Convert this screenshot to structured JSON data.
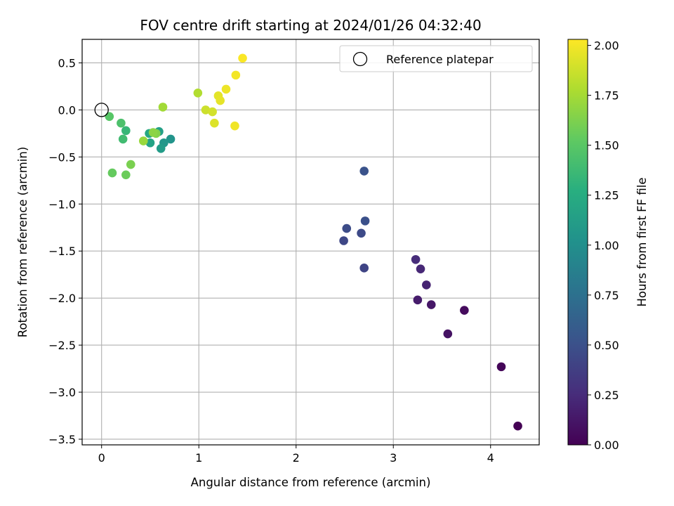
{
  "chart_data": {
    "type": "scatter",
    "title": "FOV centre drift starting at 2024/01/26 04:32:40",
    "xlabel": "Angular distance from reference (arcmin)",
    "ylabel": "Rotation from reference (arcmin)",
    "xlim": [
      -0.2,
      4.5
    ],
    "ylim": [
      -3.56,
      0.75
    ],
    "xticks": [
      0,
      1,
      2,
      3,
      4
    ],
    "xtick_labels": [
      "0",
      "1",
      "2",
      "3",
      "4"
    ],
    "yticks": [
      0.5,
      0.0,
      -0.5,
      -1.0,
      -1.5,
      -2.0,
      -2.5,
      -3.0,
      -3.5
    ],
    "ytick_labels": [
      "0.5",
      "0.0",
      "−0.5",
      "−1.0",
      "−1.5",
      "−2.0",
      "−2.5",
      "−3.0",
      "−3.5"
    ],
    "grid": true,
    "legend": {
      "position": "top-right",
      "entries": [
        "Reference platepar"
      ]
    },
    "reference_point": {
      "x": 0,
      "y": 0
    },
    "colorbar": {
      "label": "Hours from first FF file",
      "colormap": "viridis",
      "range": [
        0.0,
        2.03
      ],
      "ticks": [
        0.0,
        0.25,
        0.5,
        0.75,
        1.0,
        1.25,
        1.5,
        1.75,
        2.0
      ],
      "tick_labels": [
        "0.00",
        "0.25",
        "0.50",
        "0.75",
        "1.00",
        "1.25",
        "1.50",
        "1.75",
        "2.00"
      ]
    },
    "points": [
      {
        "x": 4.28,
        "y": -3.36,
        "c": 0.0
      },
      {
        "x": 4.11,
        "y": -2.73,
        "c": 0.03
      },
      {
        "x": 3.73,
        "y": -2.13,
        "c": 0.06
      },
      {
        "x": 3.56,
        "y": -2.38,
        "c": 0.1
      },
      {
        "x": 3.39,
        "y": -2.07,
        "c": 0.13
      },
      {
        "x": 3.25,
        "y": -2.02,
        "c": 0.16
      },
      {
        "x": 3.34,
        "y": -1.86,
        "c": 0.2
      },
      {
        "x": 3.28,
        "y": -1.69,
        "c": 0.23
      },
      {
        "x": 3.23,
        "y": -1.59,
        "c": 0.26
      },
      {
        "x": 2.7,
        "y": -1.68,
        "c": 0.42
      },
      {
        "x": 2.49,
        "y": -1.39,
        "c": 0.44
      },
      {
        "x": 2.67,
        "y": -1.31,
        "c": 0.46
      },
      {
        "x": 2.52,
        "y": -1.26,
        "c": 0.47
      },
      {
        "x": 2.71,
        "y": -1.18,
        "c": 0.5
      },
      {
        "x": 2.7,
        "y": -0.65,
        "c": 0.52
      },
      {
        "x": 0.71,
        "y": -0.31,
        "c": 1.05
      },
      {
        "x": 0.64,
        "y": -0.35,
        "c": 1.08
      },
      {
        "x": 0.61,
        "y": -0.41,
        "c": 1.12
      },
      {
        "x": 0.59,
        "y": -0.23,
        "c": 1.15
      },
      {
        "x": 0.5,
        "y": -0.35,
        "c": 1.18
      },
      {
        "x": 0.49,
        "y": -0.25,
        "c": 1.22
      },
      {
        "x": 0.25,
        "y": -0.22,
        "c": 1.35
      },
      {
        "x": 0.22,
        "y": -0.31,
        "c": 1.4
      },
      {
        "x": 0.2,
        "y": -0.14,
        "c": 1.45
      },
      {
        "x": 0.08,
        "y": -0.07,
        "c": 1.5
      },
      {
        "x": 0.11,
        "y": -0.67,
        "c": 1.55
      },
      {
        "x": 0.25,
        "y": -0.69,
        "c": 1.57
      },
      {
        "x": 0.3,
        "y": -0.58,
        "c": 1.62
      },
      {
        "x": 0.56,
        "y": -0.25,
        "c": 1.65
      },
      {
        "x": 0.53,
        "y": -0.24,
        "c": 1.68
      },
      {
        "x": 0.43,
        "y": -0.33,
        "c": 1.72
      },
      {
        "x": 0.63,
        "y": 0.03,
        "c": 1.75
      },
      {
        "x": 0.99,
        "y": 0.18,
        "c": 1.8
      },
      {
        "x": 1.07,
        "y": 0.0,
        "c": 1.88
      },
      {
        "x": 1.14,
        "y": -0.02,
        "c": 1.9
      },
      {
        "x": 1.16,
        "y": -0.14,
        "c": 1.93
      },
      {
        "x": 1.2,
        "y": 0.15,
        "c": 1.95
      },
      {
        "x": 1.22,
        "y": 0.1,
        "c": 1.96
      },
      {
        "x": 1.28,
        "y": 0.22,
        "c": 1.98
      },
      {
        "x": 1.37,
        "y": -0.17,
        "c": 1.99
      },
      {
        "x": 1.38,
        "y": 0.37,
        "c": 2.0
      },
      {
        "x": 1.45,
        "y": 0.55,
        "c": 2.02
      }
    ]
  }
}
